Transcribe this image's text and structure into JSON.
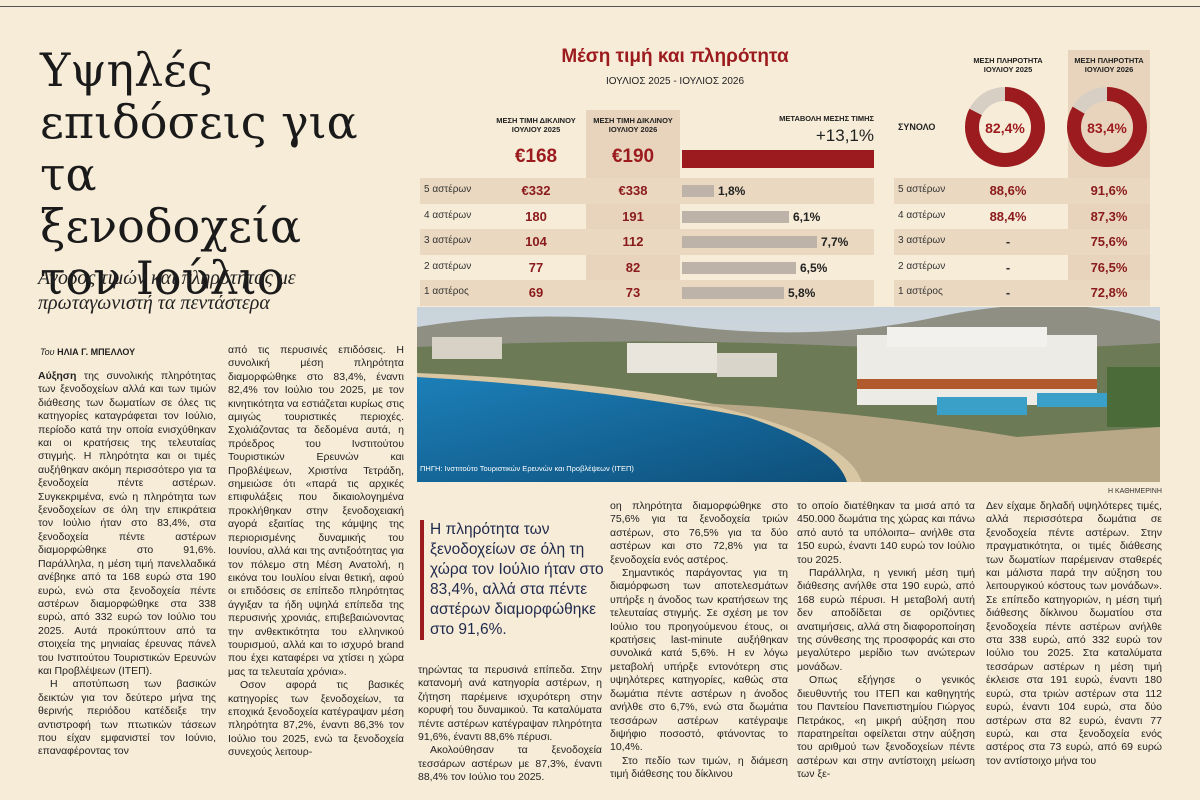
{
  "article": {
    "headline": "Υψηλές επιδόσεις για τα ξενοδοχεία τον Ιούλιο",
    "subhead": "Ανοδος τιμών και πληρότητας με πρωταγωνιστή τα πεντάστερα",
    "byline_prefix": "Του ",
    "byline_name": "ΗΛΙΑ Γ. ΜΠΕΛΛΟΥ",
    "lead_word": "Αύξηση",
    "col1_p1": " της συνολικής πληρότητας των ξενοδοχείων αλλά και των τιμών διάθεσης των δωματίων σε όλες τις κατηγορίες καταγράφεται τον Ιούλιο, περίοδο κατά την οποία ενισχύθηκαν και οι κρατήσεις της τελευταίας στιγμής. Η πληρότητα και οι τιμές αυξήθηκαν ακόμη περισσότερο για τα ξενοδοχεία πέντε αστέρων. Συγκεκριμένα, ενώ η πληρότητα των ξενοδοχείων σε όλη την επικράτεια τον Ιούλιο ήταν στο 83,4%, στα ξενοδοχεία πέντε αστέρων διαμορφώθηκε στο 91,6%. Παράλληλα, η μέση τιμή πανελλαδικά ανέβηκε από τα 168 ευρώ στα 190 ευρώ, ενώ στα ξενοδοχεία πέντε αστέρων διαμορφώθηκε στα 338 ευρώ, από 332 ευρώ τον Ιούλιο του 2025. Αυτά προκύπτουν από τα στοιχεία της μηνιαίας έρευνας πάνελ του Ινστιτούτου Τουριστικών Ερευνών και Προβλέψεων (ΙΤΕΠ).",
    "col1_p2": "Η αποτύπωση των βασικών δεικτών για τον δεύτερο μήνα της θερινής περιόδου κατέδειξε την αντιστροφή των πτωτικών τάσεων που είχαν εμφανιστεί τον Ιούνιο, επαναφέροντας τον",
    "col2_p1": "από τις περυσινές επιδόσεις. Η συνολική μέση πληρότητα διαμορφώθηκε στο 83,4%, έναντι 82,4% τον Ιούλιο του 2025, με τον κινητικότητα να εστιάζεται κυρίως στις αμιγώς τουριστικές περιοχές. Σχολιάζοντας τα δεδομένα αυτά, η πρόεδρος του Ινστιτούτου Τουριστικών Ερευνών και Προβλέψεων, Χριστίνα Τετράδη, σημειώσε ότι «παρά τις αρχικές επιφυλάξεις που δικαιολογημένα προκλήθηκαν στην ξενοδοχειακή αγορά εξαιτίας της κάμψης της περιορισμένης δυναμικής του Ιουνίου, αλλά και της αντιξοότητας για τον πόλεμο στη Μέση Ανατολή, η εικόνα του Ιουλίου είναι θετική, αφού οι επιδόσεις σε επίπεδο πληρότητας άγγιξαν τα ήδη υψηλά επίπεδα της περυσινής χρονιάς, επιβεβαιώνοντας την ανθεκτικότητα του ελληνικού τουρισμού, αλλά και το ισχυρό brand που έχει καταφέρει να χτίσει η χώρα μας τα τελευταία χρόνια».",
    "col2_p2": "Οσον αφορά τις βασικές κατηγορίες των ξενοδοχείων, τα εποχικά ξενοδοχεία κατέγραψαν μέση πληρότητα 87,2%, έναντι 86,3% τον Ιούλιο του 2025, ενώ τα ξενοδοχεία συνεχούς λειτουρ-",
    "pullquote": "Η πληρότητα των ξενοδοχείων σε όλη τη χώρα τον Ιούλιο ήταν στο 83,4%, αλλά στα πέντε αστέρων διαμορφώθηκε στο 91,6%.",
    "col3_p1": "τηρώντας τα περυσινά επίπεδα. Στην κατανομή ανά κατηγορία αστέρων, η ζήτηση παρέμεινε ισχυρότερη στην κορυφή του δυναμικού. Τα καταλύματα πέντε αστέρων κατέγραψαν πληρότητα 91,6%, έναντι 88,6% πέρυσι.",
    "col3_p2": "Ακολούθησαν τα ξενοδοχεία τεσσάρων αστέρων με 87,3%, έναντι 88,4% τον Ιούλιο του 2025.",
    "col4_p1": "οη πληρότητα διαμορφώθηκε στο 75,6% για τα ξενοδοχεία τριών αστέρων, στο 76,5% για τα δύο αστέρων και στο 72,8% για τα ξενοδοχεία ενός αστέρος.",
    "col4_p2": "Σημαντικός παράγοντας για τη διαμόρφωση των αποτελεσμάτων υπήρξε η άνοδος των κρατήσεων της τελευταίας στιγμής. Σε σχέση με τον Ιούλιο του προηγούμενου έτους, οι κρατήσεις last-minute αυξήθηκαν συνολικά κατά 5,6%. Η εν λόγω μεταβολή υπήρξε εντονότερη στις υψηλότερες κατηγορίες, καθώς στα δωμάτια πέντε αστέρων η άνοδος ανήλθε στο 6,7%, ενώ στα δωμάτια τεσσάρων αστέρων κατέγραψε διψήφιο ποσοστό, φτάνοντας το 10,4%.",
    "col4_p3": "Στο πεδίο των τιμών, η διάμεση τιμή διάθεσης του δίκλινου",
    "col5_p1": "το οποίο διατέθηκαν τα μισά από τα 450.000 δωμάτια της χώρας και πάνω από αυτό τα υπόλοιπα– ανήλθε στα 150 ευρώ, έναντι 140 ευρώ τον Ιούλιο του 2025.",
    "col5_p2": "Παράλληλα, η γενική μέση τιμή διάθεσης ανήλθε στα 190 ευρώ, από 168 ευρώ πέρυσι. Η μεταβολή αυτή δεν αποδίδεται σε οριζόντιες ανατιμήσεις, αλλά στη διαφοροποίηση της σύνθεσης της προσφοράς και στο μεγαλύτερο μερίδιο των ανώτερων μονάδων.",
    "col5_p3": "Οπως εξήγησε ο γενικός διευθυντής του ΙΤΕΠ και καθηγητής του Παντείου Πανεπιστημίου Γιώργος Πετράκος, «η μικρή αύξηση που παρατηρείται οφείλεται στην αύξηση του αριθμού των ξενοδοχείων πέντε αστέρων και στην αντίστοιχη μείωση των ξε-",
    "col6_p1": "Δεν είχαμε δηλαδή υψηλότερες τιμές, αλλά περισσότερα δωμάτια σε ξενοδοχεία πέντε αστέρων. Στην πραγματικότητα, οι τιμές διάθεσης των δωματίων παρέμειναν σταθερές και μάλιστα παρά την αύξηση του λειτουργικού κόστους των μονάδων». Σε επίπεδο κατηγοριών, η μέση τιμή διάθεσης δίκλινου δωματίου στα ξενοδοχεία πέντε αστέρων ανήλθε στα 338 ευρώ, από 332 ευρώ τον Ιούλιο του 2025. Στα καταλύματα τεσσάρων αστέρων η μέση τιμή έκλεισε στα 191 ευρώ, έναντι 180 ευρώ, στα τριών αστέρων στα 112 ευρώ, έναντι 104 ευρώ, στα δύο αστέρων στα 82 ευρώ, έναντι 77 ευρώ, και στα ξενοδοχεία ενός αστέρος στα 73 ευρώ, από 69 ευρώ τον αντίστοιχο μήνα του"
  },
  "infographic": {
    "title": "Μέση τιμή και πληρότητα",
    "subtitle": "ΙΟΥΛΙΟΣ 2025 - ΙΟΥΛΙΟΣ 2026",
    "col_price_2025": "ΜΕΣΗ ΤΙΜΗ ΔΙΚΛΙΝΟΥ ΙΟΥΛΙΟΥ 2025",
    "col_price_2026": "ΜΕΣΗ ΤΙΜΗ ΔΙΚΛΙΝΟΥ ΙΟΥΛΙΟΥ 2026",
    "col_change": "ΜΕΤΑΒΟΛΗ ΜΕΣΗΣ ΤΙΜΗΣ",
    "col_occ_2025": "ΜΕΣΗ ΠΛΗΡΟΤΗΤΑ ΙΟΥΛΙΟΥ 2025",
    "col_occ_2026": "ΜΕΣΗ ΠΛΗΡΟΤΗΤΑ ΙΟΥΛΙΟΥ 2026",
    "total_label": "ΣΥΝΟΛΟ",
    "total_price_2025": "€168",
    "total_price_2026": "€190",
    "total_change": "+13,1%",
    "total_occ_2025": "82,4%",
    "total_occ_2026": "83,4%",
    "source": "ΠΗΓΗ: Ινστιτούτο Τουριστικών Ερευνών και Προβλέψεων (ΙΤΕΠ)",
    "photo_credit": "Η ΚΑΘΗΜΕΡΙΝΗ",
    "colors": {
      "accent": "#9c1b1e",
      "bar": "#bdb3a8",
      "band": "#ead9c0"
    }
  },
  "chart_data": {
    "type": "table",
    "title": "Μέση τιμή και πληρότητα",
    "subtitle": "ΙΟΥΛΙΟΣ 2025 - ΙΟΥΛΙΟΣ 2026",
    "total": {
      "price_2025": 168,
      "price_2026": 190,
      "change_pct": 13.1,
      "occ_2025": 82.4,
      "occ_2026": 83.4
    },
    "rows": [
      {
        "label": "5 αστέρων",
        "price_2025": "€332",
        "price_2026": "€338",
        "change": "1,8%",
        "change_value": 1.8,
        "occ_2025": "88,6%",
        "occ_2026": "91,6%"
      },
      {
        "label": "4 αστέρων",
        "price_2025": "180",
        "price_2026": "191",
        "change": "6,1%",
        "change_value": 6.1,
        "occ_2025": "88,4%",
        "occ_2026": "87,3%"
      },
      {
        "label": "3 αστέρων",
        "price_2025": "104",
        "price_2026": "112",
        "change": "7,7%",
        "change_value": 7.7,
        "occ_2025": "-",
        "occ_2026": "75,6%"
      },
      {
        "label": "2 αστέρων",
        "price_2025": "77",
        "price_2026": "82",
        "change": "6,5%",
        "change_value": 6.5,
        "occ_2025": "-",
        "occ_2026": "76,5%"
      },
      {
        "label": "1 αστέρος",
        "price_2025": "69",
        "price_2026": "73",
        "change": "5,8%",
        "change_value": 5.8,
        "occ_2025": "-",
        "occ_2026": "72,8%"
      }
    ]
  }
}
